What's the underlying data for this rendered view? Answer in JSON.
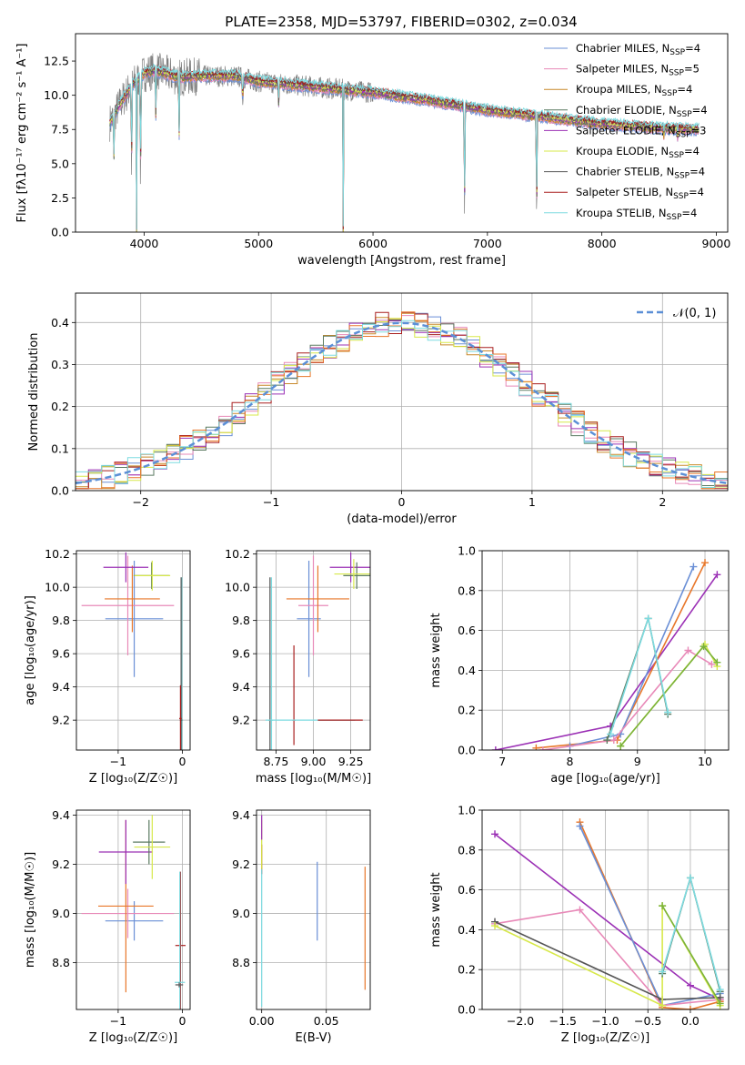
{
  "figure_title": "PLATE=2358, MJD=53797, FIBERID=0302, z=0.034",
  "colors": {
    "Chabrier MILES": "#6a8fd6",
    "Salpeter MILES": "#e889b8",
    "Kroupa MILES": "#c8892a",
    "Chabrier ELODIE": "#5a7a60",
    "Salpeter ELODIE": "#9b30b5",
    "Kroupa ELODIE": "#d7e84a",
    "Chabrier STELIB": "#555555",
    "Salpeter STELIB": "#a81e1e",
    "Kroupa STELIB": "#7ddbe0",
    "extra_orange": "#e8772a",
    "extra_green": "#7ab23a",
    "gauss": "#5b8fd6"
  },
  "chart_data": [
    {
      "id": "spectrum",
      "type": "line",
      "title": "PLATE=2358, MJD=53797, FIBERID=0302, z=0.034",
      "xlabel": "wavelength [Angstrom, rest frame]",
      "ylabel": "Flux [fλ10⁻¹⁷ erg cm⁻² s⁻¹ A⁻¹]",
      "xlim": [
        3400,
        9100
      ],
      "ylim": [
        0,
        14.5
      ],
      "xticks": [
        4000,
        5000,
        6000,
        7000,
        8000,
        9000
      ],
      "yticks": [
        0.0,
        2.5,
        5.0,
        7.5,
        10.0,
        12.5
      ],
      "grid": false,
      "legend_position": "top-right",
      "legend": [
        {
          "label": "Chabrier MILES, N",
          "sub": "SSP",
          "suffix": "=4",
          "color_key": "Chabrier MILES"
        },
        {
          "label": "Salpeter MILES, N",
          "sub": "SSP",
          "suffix": "=5",
          "color_key": "Salpeter MILES"
        },
        {
          "label": "Kroupa MILES, N",
          "sub": "SSP",
          "suffix": "=4",
          "color_key": "Kroupa MILES"
        },
        {
          "label": "Chabrier ELODIE, N",
          "sub": "SSP",
          "suffix": "=4",
          "color_key": "Chabrier ELODIE"
        },
        {
          "label": "Salpeter ELODIE, N",
          "sub": "SSP",
          "suffix": "=3",
          "color_key": "Salpeter ELODIE"
        },
        {
          "label": "Kroupa ELODIE, N",
          "sub": "SSP",
          "suffix": "=4",
          "color_key": "Kroupa ELODIE"
        },
        {
          "label": "Chabrier STELIB, N",
          "sub": "SSP",
          "suffix": "=4",
          "color_key": "Chabrier STELIB"
        },
        {
          "label": "Salpeter STELIB, N",
          "sub": "SSP",
          "suffix": "=4",
          "color_key": "Salpeter STELIB"
        },
        {
          "label": "Kroupa STELIB, N",
          "sub": "SSP",
          "suffix": "=4",
          "color_key": "Kroupa STELIB"
        }
      ],
      "continuum": [
        [
          3700,
          8.0
        ],
        [
          3800,
          9.5
        ],
        [
          3900,
          10.8
        ],
        [
          4000,
          11.6
        ],
        [
          4100,
          11.8
        ],
        [
          4300,
          11.3
        ],
        [
          4500,
          11.4
        ],
        [
          4800,
          11.4
        ],
        [
          5000,
          11.0
        ],
        [
          5500,
          10.6
        ],
        [
          6000,
          10.2
        ],
        [
          6500,
          9.6
        ],
        [
          7000,
          8.9
        ],
        [
          7500,
          8.4
        ],
        [
          8000,
          7.9
        ],
        [
          8500,
          7.6
        ],
        [
          8850,
          7.5
        ]
      ],
      "absorption_features": [
        {
          "x": 3735,
          "y": 4.9
        },
        {
          "x": 3890,
          "y": 3.8
        },
        {
          "x": 3934,
          "y": 0.0
        },
        {
          "x": 3968,
          "y": 2.9
        },
        {
          "x": 4102,
          "y": 8.6
        },
        {
          "x": 4305,
          "y": 6.3
        },
        {
          "x": 4861,
          "y": 9.2
        },
        {
          "x": 5175,
          "y": 9.1
        },
        {
          "x": 5740,
          "y": 0.0
        },
        {
          "x": 6565,
          "y": 9.6
        },
        {
          "x": 6800,
          "y": 0.0
        },
        {
          "x": 7430,
          "y": 0.0
        },
        {
          "x": 8542,
          "y": 7.1
        },
        {
          "x": 8662,
          "y": 7.0
        }
      ]
    },
    {
      "id": "residuals",
      "type": "line",
      "xlabel": "(data-model)/error",
      "ylabel": "Normed distribution",
      "xlim": [
        -2.5,
        2.5
      ],
      "ylim": [
        0,
        0.47
      ],
      "xticks": [
        -2,
        -1,
        0,
        1,
        2
      ],
      "yticks": [
        0.0,
        0.1,
        0.2,
        0.3,
        0.4
      ],
      "grid": true,
      "legend_position": "top-right",
      "legend": [
        {
          "label": "𝒩(0, 1)",
          "color_key": "gauss"
        }
      ],
      "bin_width": 0.1,
      "bin_start": -2.5,
      "n_histograms": 9
    },
    {
      "id": "age_vs_Z",
      "type": "scatter",
      "xlabel": "Z [log₁₀(Z/Z☉)]",
      "ylabel": "age  [log₁₀(age/yr)]",
      "xlim": [
        -1.65,
        0.12
      ],
      "ylim": [
        9.02,
        10.22
      ],
      "xticks": [
        -1,
        0
      ],
      "yticks": [
        9.2,
        9.4,
        9.6,
        9.8,
        10.0,
        10.2
      ],
      "grid": true,
      "points": [
        {
          "color_key": "Chabrier MILES",
          "x": -0.75,
          "xerr": 0.45,
          "y": 9.81,
          "yerr": 0.35
        },
        {
          "color_key": "Salpeter MILES",
          "x": -0.85,
          "xerr": 0.72,
          "y": 9.89,
          "yerr": 0.3
        },
        {
          "color_key": "extra_orange",
          "x": -0.78,
          "xerr": 0.43,
          "y": 9.93,
          "yerr": 0.2
        },
        {
          "color_key": "Salpeter ELODIE",
          "x": -0.88,
          "xerr": 0.35,
          "y": 10.12,
          "yerr": 0.09
        },
        {
          "color_key": "Chabrier ELODIE",
          "x": -0.48,
          "xerr": 0.28,
          "y": 10.07,
          "yerr": 0.08
        },
        {
          "color_key": "Kroupa ELODIE",
          "x": -0.47,
          "xerr": 0.28,
          "y": 10.07,
          "yerr": 0.09
        },
        {
          "color_key": "Kroupa STELIB",
          "x": -0.01,
          "xerr": 0.02,
          "y": 9.2,
          "yerr": 0.86
        },
        {
          "color_key": "Chabrier STELIB",
          "x": -0.02,
          "xerr": 0.02,
          "y": 9.2,
          "yerr": 0.86
        },
        {
          "color_key": "Salpeter STELIB",
          "x": -0.03,
          "xerr": 0.02,
          "y": 9.21,
          "yerr": 0.2
        }
      ]
    },
    {
      "id": "age_vs_mass",
      "type": "scatter",
      "xlabel": "mass [log₁₀(M/M☉)]",
      "ylabel": "",
      "xlim": [
        8.62,
        9.38
      ],
      "ylim": [
        9.02,
        10.22
      ],
      "xticks": [
        8.75,
        9.0,
        9.25
      ],
      "yticks": [
        9.2,
        9.4,
        9.6,
        9.8,
        10.0,
        10.2
      ],
      "grid": true,
      "points": [
        {
          "color_key": "Chabrier MILES",
          "x": 8.97,
          "xerr": 0.08,
          "y": 9.81,
          "yerr": 0.35
        },
        {
          "color_key": "Salpeter MILES",
          "x": 9.0,
          "xerr": 0.1,
          "y": 9.89,
          "yerr": 0.3
        },
        {
          "color_key": "extra_orange",
          "x": 9.03,
          "xerr": 0.21,
          "y": 9.93,
          "yerr": 0.2
        },
        {
          "color_key": "Salpeter ELODIE",
          "x": 9.25,
          "xerr": 0.14,
          "y": 10.12,
          "yerr": 0.09
        },
        {
          "color_key": "Chabrier ELODIE",
          "x": 9.29,
          "xerr": 0.09,
          "y": 10.07,
          "yerr": 0.08
        },
        {
          "color_key": "Kroupa ELODIE",
          "x": 9.27,
          "xerr": 0.13,
          "y": 10.08,
          "yerr": 0.09
        },
        {
          "color_key": "Kroupa STELIB",
          "x": 8.72,
          "xerr": 0.01,
          "y": 9.2,
          "yerr": 0.86
        },
        {
          "color_key": "Chabrier STELIB",
          "x": 8.71,
          "xerr": 0.01,
          "y": 9.2,
          "yerr": 0.86
        },
        {
          "color_key": "Salpeter STELIB",
          "x": 8.87,
          "xerr": 0.01,
          "y": 9.2,
          "yerr": 0.0
        },
        {
          "color_key": "Salpeter STELIB",
          "x": 8.87,
          "xerr": 0.0,
          "y": 9.35,
          "yerr": 0.3
        },
        {
          "color_key": "Kroupa STELIB",
          "x": 8.98,
          "xerr": 0.3,
          "y": 9.2,
          "yerr": 0.0
        },
        {
          "color_key": "Salpeter STELIB",
          "x": 9.18,
          "xerr": 0.15,
          "y": 9.2,
          "yerr": 0.0
        }
      ]
    },
    {
      "id": "mass_weight_vs_age",
      "type": "line",
      "xlabel": "age  [log₁₀(age/yr)]",
      "ylabel": "mass weight",
      "xlim": [
        6.7,
        10.35
      ],
      "ylim": [
        0,
        1.0
      ],
      "xticks": [
        7,
        8,
        9,
        10
      ],
      "yticks": [
        0.0,
        0.2,
        0.4,
        0.6,
        0.8,
        1.0
      ],
      "grid": true,
      "series": [
        {
          "color_key": "Salpeter ELODIE",
          "x": [
            6.9,
            8.6,
            10.18
          ],
          "y": [
            0.0,
            0.12,
            0.88
          ]
        },
        {
          "color_key": "extra_orange",
          "x": [
            7.5,
            8.7,
            10.0
          ],
          "y": [
            0.01,
            0.05,
            0.94
          ]
        },
        {
          "color_key": "Chabrier MILES",
          "x": [
            8.0,
            8.75,
            9.83
          ],
          "y": [
            0.02,
            0.08,
            0.92
          ]
        },
        {
          "color_key": "Salpeter MILES",
          "x": [
            7.6,
            8.65,
            9.75,
            10.1
          ],
          "y": [
            0.0,
            0.05,
            0.5,
            0.43
          ]
        },
        {
          "color_key": "Kroupa ELODIE",
          "x": [
            8.75,
            10.0,
            10.18
          ],
          "y": [
            0.02,
            0.53,
            0.42
          ]
        },
        {
          "color_key": "extra_green",
          "x": [
            8.75,
            9.98,
            10.18
          ],
          "y": [
            0.02,
            0.52,
            0.44
          ]
        },
        {
          "color_key": "Chabrier ELODIE",
          "x": [
            8.55,
            9.16,
            9.45
          ],
          "y": [
            0.05,
            0.66,
            0.18
          ]
        },
        {
          "color_key": "Kroupa STELIB",
          "x": [
            8.6,
            9.16,
            9.45
          ],
          "y": [
            0.08,
            0.66,
            0.19
          ]
        }
      ]
    },
    {
      "id": "mass_vs_Z",
      "type": "scatter",
      "xlabel": "Z [log₁₀(Z/Z☉)]",
      "ylabel": "mass [log₁₀(M/M☉)]",
      "xlim": [
        -1.65,
        0.12
      ],
      "ylim": [
        8.61,
        9.42
      ],
      "xticks": [
        -1,
        0
      ],
      "yticks": [
        8.8,
        9.0,
        9.2,
        9.4
      ],
      "grid": true,
      "points": [
        {
          "color_key": "Chabrier MILES",
          "x": -0.75,
          "xerr": 0.45,
          "y": 8.97,
          "yerr": 0.08
        },
        {
          "color_key": "Salpeter MILES",
          "x": -0.85,
          "xerr": 0.72,
          "y": 9.0,
          "yerr": 0.1
        },
        {
          "color_key": "extra_orange",
          "x": -0.88,
          "xerr": 0.43,
          "y": 9.03,
          "yerr": 0.35
        },
        {
          "color_key": "Salpeter ELODIE",
          "x": -0.88,
          "xerr": 0.42,
          "y": 9.25,
          "yerr": 0.13
        },
        {
          "color_key": "Chabrier ELODIE",
          "x": -0.52,
          "xerr": 0.25,
          "y": 9.29,
          "yerr": 0.09
        },
        {
          "color_key": "Kroupa ELODIE",
          "x": -0.47,
          "xerr": 0.28,
          "y": 9.27,
          "yerr": 0.13
        },
        {
          "color_key": "Salpeter STELIB",
          "x": -0.03,
          "xerr": 0.08,
          "y": 8.87,
          "yerr": 0.3
        },
        {
          "color_key": "Kroupa STELIB",
          "x": -0.04,
          "xerr": 0.08,
          "y": 8.72,
          "yerr": 0.45
        },
        {
          "color_key": "Chabrier STELIB",
          "x": -0.05,
          "xerr": 0.06,
          "y": 8.71,
          "yerr": 0.01
        }
      ]
    },
    {
      "id": "mass_vs_EBV",
      "type": "scatter",
      "xlabel": "E(B-V)",
      "ylabel": "",
      "xlim": [
        -0.004,
        0.084
      ],
      "ylim": [
        8.61,
        9.42
      ],
      "xticks": [
        0.0,
        0.05
      ],
      "yticks": [
        8.8,
        9.0,
        9.2,
        9.4
      ],
      "grid": true,
      "points": [
        {
          "color_key": "Chabrier MILES",
          "x": 0.043,
          "xerr": 0.0,
          "y": 9.05,
          "yerr": 0.16
        },
        {
          "color_key": "extra_orange",
          "x": 0.08,
          "xerr": 0.0,
          "y": 8.94,
          "yerr": 0.25
        },
        {
          "color_key": "Salpeter STELIB",
          "x": 0.0,
          "xerr": 0.0,
          "y": 9.22,
          "yerr": 0.06
        },
        {
          "color_key": "Kroupa ELODIE",
          "x": 0.0,
          "xerr": 0.0,
          "y": 9.28,
          "yerr": 0.1
        },
        {
          "color_key": "Salpeter ELODIE",
          "x": 0.0,
          "xerr": 0.0,
          "y": 9.35,
          "yerr": 0.05
        },
        {
          "color_key": "Kroupa STELIB",
          "x": 0.0,
          "xerr": 0.0,
          "y": 8.9,
          "yerr": 0.28
        }
      ]
    },
    {
      "id": "mass_weight_vs_Z",
      "type": "line",
      "xlabel": "Z [log₁₀(Z/Z☉)]",
      "ylabel": "mass weight",
      "xlim": [
        -2.45,
        0.45
      ],
      "ylim": [
        0,
        1.0
      ],
      "xticks": [
        -2.0,
        -1.5,
        -1.0,
        -0.5,
        0.0
      ],
      "yticks": [
        0.0,
        0.2,
        0.4,
        0.6,
        0.8,
        1.0
      ],
      "grid": true,
      "series": [
        {
          "color_key": "Salpeter ELODIE",
          "x": [
            -2.3,
            0.0,
            0.35
          ],
          "y": [
            0.88,
            0.12,
            0.05
          ]
        },
        {
          "color_key": "extra_orange",
          "x": [
            -1.3,
            -0.33,
            0.0,
            0.35
          ],
          "y": [
            0.94,
            0.01,
            0.0,
            0.04
          ]
        },
        {
          "color_key": "Chabrier MILES",
          "x": [
            -1.3,
            -0.33,
            0.35
          ],
          "y": [
            0.92,
            0.02,
            0.08
          ]
        },
        {
          "color_key": "Salpeter MILES",
          "x": [
            -2.3,
            -1.3,
            -0.33,
            0.35
          ],
          "y": [
            0.43,
            0.5,
            0.02,
            0.05
          ]
        },
        {
          "color_key": "Chabrier STELIB",
          "x": [
            -2.3,
            -0.33,
            0.35
          ],
          "y": [
            0.44,
            0.05,
            0.06
          ]
        },
        {
          "color_key": "Kroupa ELODIE",
          "x": [
            -2.3,
            -0.33,
            -0.33,
            0.35
          ],
          "y": [
            0.42,
            0.02,
            0.52,
            0.02
          ]
        },
        {
          "color_key": "extra_green",
          "x": [
            -0.33,
            0.35
          ],
          "y": [
            0.52,
            0.03
          ]
        },
        {
          "color_key": "Chabrier ELODIE",
          "x": [
            -0.33,
            0.0,
            0.35
          ],
          "y": [
            0.18,
            0.66,
            0.09
          ]
        },
        {
          "color_key": "Kroupa STELIB",
          "x": [
            -0.33,
            0.0,
            0.35
          ],
          "y": [
            0.19,
            0.66,
            0.1
          ]
        }
      ]
    }
  ]
}
